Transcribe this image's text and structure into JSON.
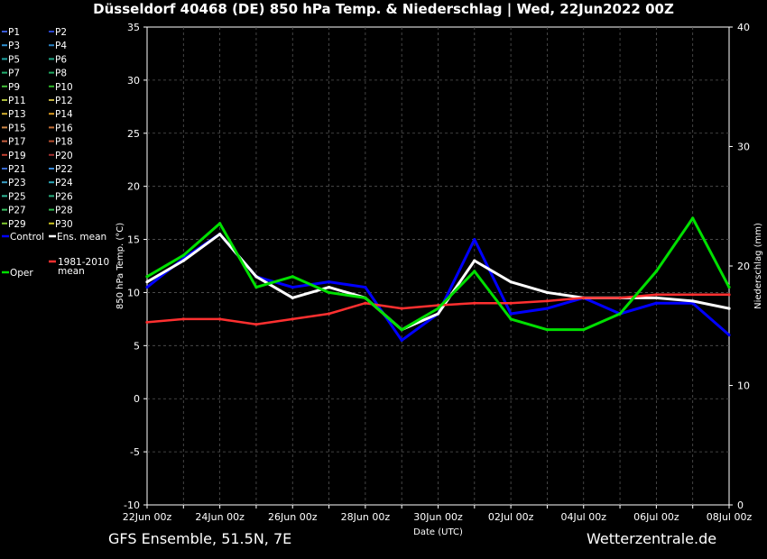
{
  "title": "Düsseldorf 40468 (DE)  850 hPa Temp. & Niederschlag | Wed, 22Jun2022 00Z",
  "footer": {
    "model": "GFS Ensemble, 51.5N, 7E",
    "source": "Wetterzentrale.de"
  },
  "chart_data": {
    "type": "line",
    "xlabel": "Date (UTC)",
    "ylabel": "850 hPa Temp. (°C)",
    "y2label": "Niederschlag (mm)",
    "ylim": [
      -10,
      35
    ],
    "y2lim": [
      0,
      40
    ],
    "yticks": [
      -10,
      -5,
      0,
      5,
      10,
      15,
      20,
      25,
      30,
      35
    ],
    "y2ticks": [
      0,
      10,
      20,
      30,
      40
    ],
    "x": [
      0,
      1,
      2,
      3,
      4,
      5,
      6,
      7,
      8,
      9,
      10,
      11,
      12,
      13,
      14,
      15,
      16
    ],
    "xtick_labels": [
      "22Jun 00z",
      "",
      "24Jun 00z",
      "",
      "26Jun 00z",
      "",
      "28Jun 00z",
      "",
      "30Jun 00z",
      "",
      "02Jul 00z",
      "",
      "04Jul 00z",
      "",
      "06Jul 00z",
      "",
      "08Jul 00z"
    ],
    "grid": true,
    "legend_placement": "left",
    "legend": [
      {
        "name": "P1",
        "color": "#3a5bd8"
      },
      {
        "name": "P2",
        "color": "#2a44cc"
      },
      {
        "name": "P3",
        "color": "#2e8fd0"
      },
      {
        "name": "P4",
        "color": "#2b7fc0"
      },
      {
        "name": "P5",
        "color": "#1fa5a5"
      },
      {
        "name": "P6",
        "color": "#23a886"
      },
      {
        "name": "P7",
        "color": "#22b070"
      },
      {
        "name": "P8",
        "color": "#20a860"
      },
      {
        "name": "P9",
        "color": "#44c03a"
      },
      {
        "name": "P10",
        "color": "#2fb82a"
      },
      {
        "name": "P11",
        "color": "#a8b838"
      },
      {
        "name": "P12",
        "color": "#c0b040"
      },
      {
        "name": "P13",
        "color": "#d4b030"
      },
      {
        "name": "P14",
        "color": "#d89820"
      },
      {
        "name": "P15",
        "color": "#d08848"
      },
      {
        "name": "P16",
        "color": "#c47038"
      },
      {
        "name": "P17",
        "color": "#c86040"
      },
      {
        "name": "P18",
        "color": "#b85030"
      },
      {
        "name": "P19",
        "color": "#c04030"
      },
      {
        "name": "P20",
        "color": "#a03030"
      },
      {
        "name": "P21",
        "color": "#3a6ad0"
      },
      {
        "name": "P22",
        "color": "#3a8ad8"
      },
      {
        "name": "P23",
        "color": "#3aa0c8"
      },
      {
        "name": "P24",
        "color": "#2aa8b8"
      },
      {
        "name": "P25",
        "color": "#30b898"
      },
      {
        "name": "P26",
        "color": "#28b080"
      },
      {
        "name": "P27",
        "color": "#38c060"
      },
      {
        "name": "P28",
        "color": "#30b850"
      },
      {
        "name": "P29",
        "color": "#80c830"
      },
      {
        "name": "P30",
        "color": "#c8c020"
      },
      {
        "name": "Control",
        "color": "#0000ff"
      },
      {
        "name": "Ens. mean",
        "color": "#ffffff"
      },
      {
        "name": "1981-2010 mean",
        "color": "#ff3030"
      },
      {
        "name": "Oper",
        "color": "#00e000"
      }
    ],
    "series": [
      {
        "name": "Control",
        "color": "#0000ff",
        "values": [
          10.5,
          13.2,
          15.5,
          11.5,
          10.5,
          11,
          10.5,
          5.5,
          8,
          15,
          8,
          8.5,
          9.5,
          8,
          9,
          9,
          6
        ]
      },
      {
        "name": "Ens. mean",
        "color": "#ffffff",
        "values": [
          11,
          13,
          15.5,
          11.5,
          9.5,
          10.5,
          9.5,
          6.5,
          8,
          13,
          11,
          10,
          9.5,
          9.5,
          9.5,
          9.2,
          8.5
        ]
      },
      {
        "name": "1981-2010 mean",
        "color": "#ff3030",
        "values": [
          7.2,
          7.5,
          7.5,
          7,
          7.5,
          8,
          9,
          8.5,
          8.8,
          9,
          9,
          9.2,
          9.5,
          9.5,
          9.8,
          9.8,
          9.8
        ]
      },
      {
        "name": "Oper",
        "color": "#00e000",
        "values": [
          11.5,
          13.5,
          16.5,
          10.5,
          11.5,
          10,
          9.5,
          6.5,
          8.5,
          12,
          7.5,
          6.5,
          6.5,
          8,
          12,
          17,
          10.5
        ]
      }
    ]
  }
}
